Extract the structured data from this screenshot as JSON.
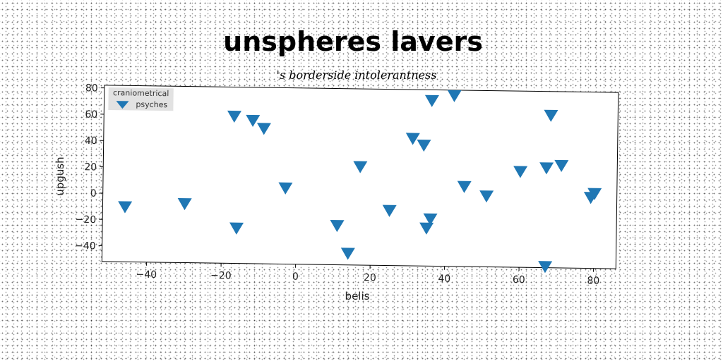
{
  "chart_data": {
    "type": "scatter",
    "title": "unspheres lavers",
    "subtitle": "'s borderside intolerantness",
    "xlabel": "belis",
    "ylabel": "upgush",
    "xlim": [
      -52,
      86
    ],
    "ylim": [
      -52,
      82
    ],
    "xticks": [
      -40,
      -20,
      0,
      20,
      40,
      60,
      80
    ],
    "yticks": [
      -40,
      -20,
      0,
      20,
      40,
      60,
      80
    ],
    "grid": false,
    "legend": {
      "title": "craniometrical",
      "position": "top-left"
    },
    "series": [
      {
        "name": "psyches",
        "marker": "triangle-down",
        "color": "#1f77b4",
        "points": [
          {
            "x": -46,
            "y": -10
          },
          {
            "x": -30,
            "y": -7
          },
          {
            "x": -17,
            "y": 60
          },
          {
            "x": -16,
            "y": -25
          },
          {
            "x": -12,
            "y": 57
          },
          {
            "x": -9,
            "y": 51
          },
          {
            "x": -3,
            "y": 6
          },
          {
            "x": 11,
            "y": -22
          },
          {
            "x": 14,
            "y": -43
          },
          {
            "x": 17,
            "y": 23
          },
          {
            "x": 25,
            "y": -10
          },
          {
            "x": 31,
            "y": 45
          },
          {
            "x": 34,
            "y": 40
          },
          {
            "x": 35,
            "y": -23
          },
          {
            "x": 36,
            "y": -16
          },
          {
            "x": 36,
            "y": 74
          },
          {
            "x": 42,
            "y": 78
          },
          {
            "x": 45,
            "y": 9
          },
          {
            "x": 51,
            "y": 2
          },
          {
            "x": 60,
            "y": 21
          },
          {
            "x": 67,
            "y": 24
          },
          {
            "x": 67,
            "y": -51
          },
          {
            "x": 68,
            "y": 64
          },
          {
            "x": 71,
            "y": 26
          },
          {
            "x": 79,
            "y": 2
          },
          {
            "x": 80,
            "y": 5
          }
        ]
      }
    ]
  }
}
